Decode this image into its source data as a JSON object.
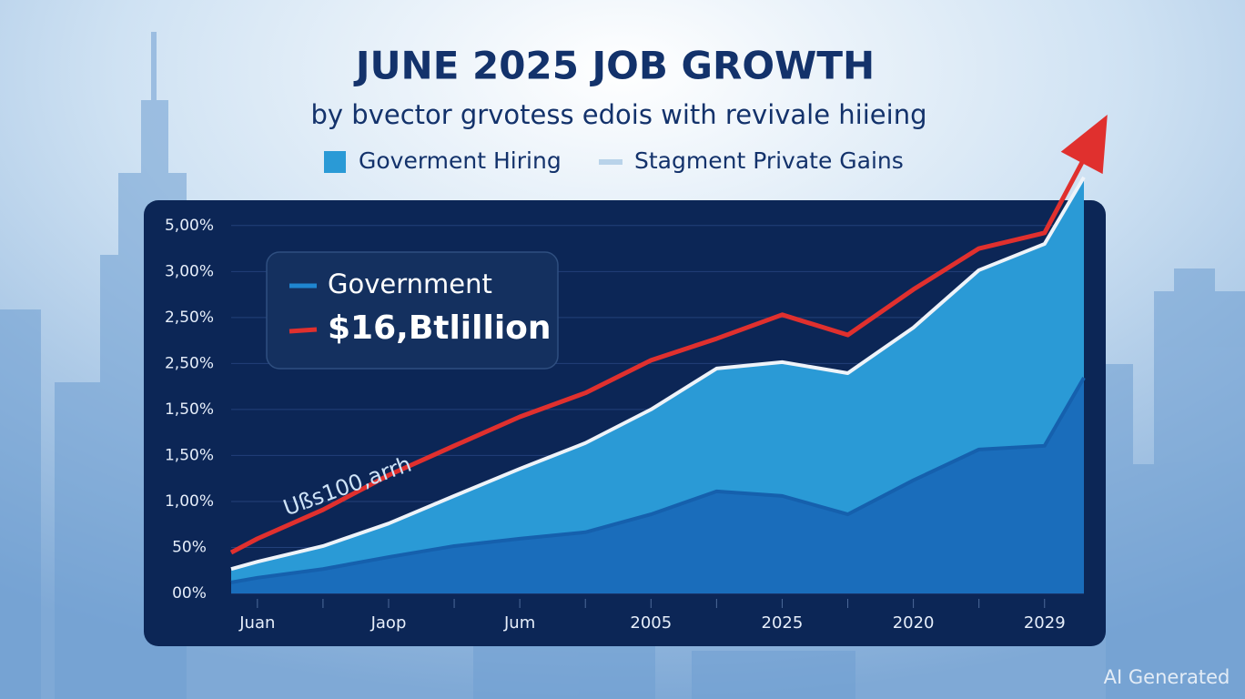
{
  "chart_data": {
    "type": "area",
    "title": "JUNE 2025 JOB GROWTH",
    "subtitle": "by bvector grvotess edois with revivale hiieing",
    "legend_extra": [
      {
        "name": "Stagment Private Gains",
        "color": "#b9d3ea"
      }
    ],
    "inset_legend": [
      {
        "name": "Government",
        "color": "#1f86d0"
      },
      {
        "name": "$16,Btlillion",
        "color": "#e0302e"
      }
    ],
    "annotation": "Ußs100,arrh",
    "watermark": "AI Generated",
    "xlim": [
      -0.4,
      12.6
    ],
    "xticks": [
      {
        "value": 0,
        "label": "Juan"
      },
      {
        "value": 2,
        "label": "Jaop"
      },
      {
        "value": 4,
        "label": "Jum"
      },
      {
        "value": 6,
        "label": "2005"
      },
      {
        "value": 8,
        "label": "2025"
      },
      {
        "value": 10,
        "label": "2020"
      },
      {
        "value": 12,
        "label": "2029"
      }
    ],
    "xminor": [
      1,
      3,
      5,
      7,
      9,
      11
    ],
    "ylim": [
      0,
      8.55
    ],
    "yticks": [
      0,
      1,
      2,
      3,
      4,
      5,
      6,
      7,
      8
    ],
    "ytick_labels": [
      "00%",
      "50%",
      "1,00%",
      "1,50%",
      "1,50%",
      "2,50%",
      "2,50%",
      "3,00%",
      "5,00%"
    ],
    "grid": true,
    "x": [
      -0.4,
      0,
      1,
      2,
      3,
      4,
      5,
      6,
      7,
      8,
      9,
      10,
      11,
      12,
      12.6
    ],
    "series": [
      {
        "name": "Goverment Hiring",
        "color": "#2a9ad6",
        "kind": "area",
        "line_color": "#eef3f9",
        "values": [
          0.53,
          0.69,
          1.03,
          1.52,
          2.12,
          2.71,
          3.27,
          4.0,
          4.89,
          5.03,
          4.79,
          5.78,
          7.03,
          7.6,
          9.05
        ]
      },
      {
        "name": "Government",
        "color": "#1a6dbb",
        "kind": "area",
        "line_color": "#1560ad",
        "values": [
          0.24,
          0.34,
          0.53,
          0.79,
          1.03,
          1.19,
          1.33,
          1.72,
          2.22,
          2.12,
          1.72,
          2.46,
          3.13,
          3.21,
          4.69
        ]
      },
      {
        "name": "$16,Btlillion",
        "color": "#e0302e",
        "kind": "line",
        "arrow": true,
        "values": [
          0.89,
          1.19,
          1.82,
          2.57,
          3.21,
          3.84,
          4.36,
          5.07,
          5.54,
          6.06,
          5.62,
          6.61,
          7.5,
          7.84,
          9.45
        ]
      }
    ]
  }
}
